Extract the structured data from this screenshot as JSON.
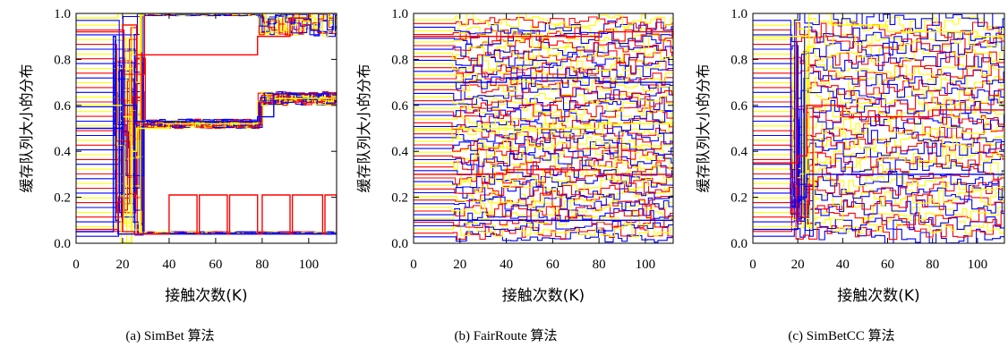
{
  "chart_data": [
    {
      "type": "line",
      "caption": "(a) SimBet 算法",
      "xlabel": "接触次数(K)",
      "ylabel": "缓存队列大小的分布",
      "xlim": [
        0,
        112
      ],
      "ylim": [
        0,
        1.0
      ],
      "xticks": [
        "0",
        "20",
        "40",
        "60",
        "80",
        "100"
      ],
      "yticks": [
        "0.0",
        "0.2",
        "0.4",
        "0.6",
        "0.8",
        "1.0"
      ],
      "series_colors": [
        "#0000ff",
        "#ff0000",
        "#ffff00"
      ],
      "series": [
        {
          "x": [
            0,
            15,
            16,
            17,
            18,
            112
          ],
          "y": [
            0.05,
            0.05,
            0.9,
            0.1,
            0.04,
            0.04
          ]
        },
        {
          "x": [
            0,
            16,
            18,
            20,
            25,
            26,
            39,
            40,
            52,
            53,
            65,
            66,
            78,
            80,
            92,
            93,
            106,
            107,
            112
          ],
          "y": [
            0.06,
            0.06,
            0.18,
            0.05,
            0.04,
            0.04,
            0.04,
            0.21,
            0.04,
            0.21,
            0.04,
            0.21,
            0.04,
            0.21,
            0.04,
            0.21,
            0.04,
            0.21,
            0.04
          ]
        },
        {
          "x": [
            0,
            16,
            20,
            24,
            26,
            40,
            78,
            85,
            112
          ],
          "y": [
            0.6,
            0.6,
            0.55,
            0.4,
            0.5,
            0.52,
            0.55,
            0.63,
            0.63
          ]
        },
        {
          "x": [
            0,
            16,
            20,
            24,
            26,
            40,
            78,
            85,
            112
          ],
          "y": [
            0.5,
            0.5,
            0.6,
            0.6,
            0.53,
            0.53,
            0.55,
            0.65,
            0.64
          ]
        },
        {
          "x": [
            0,
            16,
            20,
            26,
            78,
            92,
            100,
            112
          ],
          "y": [
            0.92,
            0.92,
            0.95,
            0.82,
            0.9,
            0.98,
            1.0,
            1.0
          ]
        },
        {
          "x": [
            0,
            16,
            18,
            30,
            112
          ],
          "y": [
            0.98,
            0.98,
            1.0,
            1.0,
            1.0
          ]
        }
      ]
    },
    {
      "type": "line",
      "caption": "(b) FairRoute 算法",
      "xlabel": "接触次数(K)",
      "ylabel": "缓存队列大小的分布",
      "xlim": [
        0,
        112
      ],
      "ylim": [
        0,
        1.0
      ],
      "xticks": [
        "0",
        "20",
        "40",
        "60",
        "80",
        "100"
      ],
      "yticks": [
        "0.0",
        "0.2",
        "0.4",
        "0.6",
        "0.8",
        "1.0"
      ],
      "series_colors": [
        "#0000ff",
        "#ff0000",
        "#ffff00"
      ],
      "series": [
        {
          "x": [
            0,
            16,
            40,
            80,
            112
          ],
          "y": [
            0.1,
            0.1,
            0.1,
            0.1,
            0.1
          ]
        },
        {
          "x": [
            0,
            16,
            40,
            80,
            112
          ],
          "y": [
            0.3,
            0.3,
            0.32,
            0.3,
            0.3
          ]
        },
        {
          "x": [
            0,
            16,
            40,
            80,
            112
          ],
          "y": [
            0.5,
            0.5,
            0.5,
            0.52,
            0.5
          ]
        },
        {
          "x": [
            0,
            16,
            40,
            80,
            112
          ],
          "y": [
            0.7,
            0.7,
            0.72,
            0.7,
            0.7
          ]
        },
        {
          "x": [
            0,
            16,
            40,
            80,
            112
          ],
          "y": [
            0.9,
            0.9,
            0.9,
            0.92,
            0.9
          ]
        }
      ]
    },
    {
      "type": "line",
      "caption": "(c) SimBetCC 算法",
      "xlabel": "接触次数(K)",
      "ylabel": "缓存队列大小的分布",
      "xlim": [
        0,
        112
      ],
      "ylim": [
        0,
        1.0
      ],
      "xticks": [
        "0",
        "20",
        "40",
        "60",
        "80",
        "100"
      ],
      "yticks": [
        "0.0",
        "0.2",
        "0.4",
        "0.6",
        "0.8",
        "1.0"
      ],
      "series_colors": [
        "#0000ff",
        "#ff0000",
        "#ffff00"
      ],
      "series": [
        {
          "x": [
            0,
            16,
            20,
            24,
            40,
            80,
            112
          ],
          "y": [
            0.06,
            0.06,
            0.2,
            0.3,
            0.3,
            0.3,
            0.3
          ]
        },
        {
          "x": [
            0,
            16,
            20,
            24,
            40,
            80,
            112
          ],
          "y": [
            0.35,
            0.35,
            0.38,
            0.6,
            0.55,
            0.58,
            0.6
          ]
        },
        {
          "x": [
            0,
            16,
            25,
            35,
            60,
            100,
            112
          ],
          "y": [
            0.9,
            0.9,
            1.0,
            0.95,
            0.92,
            0.9,
            0.88
          ]
        }
      ]
    }
  ]
}
